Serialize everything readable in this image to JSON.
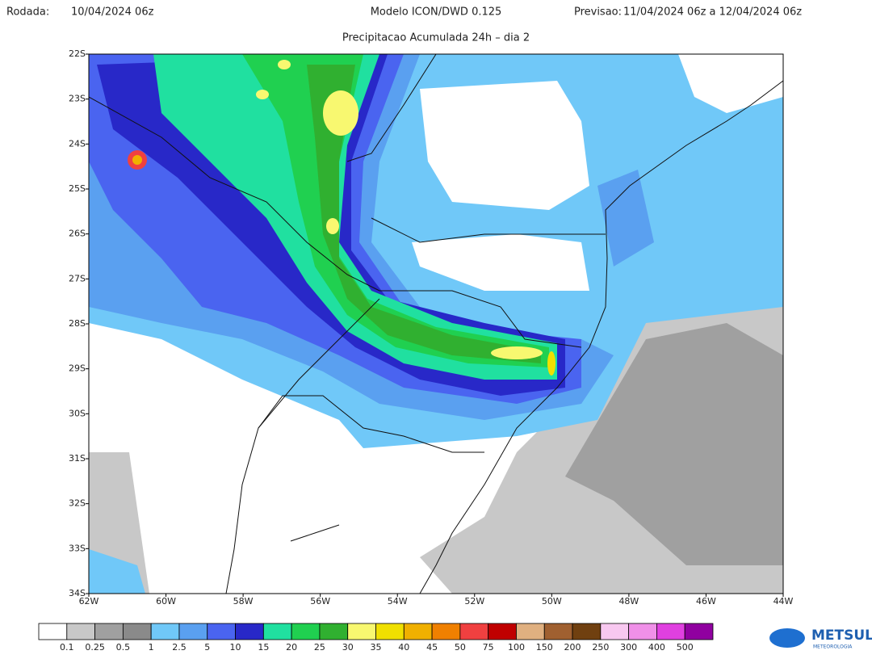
{
  "header": {
    "rodada_label": "Rodada:",
    "rodada": "10/04/2024 06z",
    "model": "Modelo ICON/DWD 0.125",
    "previsao_label": "Previsao:",
    "previsao": "11/04/2024 06z a 12/04/2024 06z"
  },
  "title": "Precipitacao Acumulada 24h – dia 2",
  "map": {
    "lat_labels": [
      "22S",
      "23S",
      "24S",
      "25S",
      "26S",
      "27S",
      "28S",
      "29S",
      "30S",
      "31S",
      "32S",
      "33S",
      "34S"
    ],
    "lon_labels": [
      "62W",
      "60W",
      "58W",
      "56W",
      "54W",
      "52W",
      "50W",
      "48W",
      "46W",
      "44W"
    ]
  },
  "colorbar": {
    "colors": [
      "#ffffff",
      "#c8c8c8",
      "#a0a0a0",
      "#8a8a8a",
      "#70c8f8",
      "#5aa0f0",
      "#4a64f0",
      "#2828c8",
      "#20e0a0",
      "#20d050",
      "#30b030",
      "#f8f870",
      "#f0e000",
      "#f0b000",
      "#f08000",
      "#f04040",
      "#c00000",
      "#e0b080",
      "#a06030",
      "#704010",
      "#f8c8f0",
      "#f090e8",
      "#e040e0",
      "#9000a0"
    ],
    "labels": [
      "0.1",
      "0.25",
      "0.5",
      "1",
      "2.5",
      "5",
      "10",
      "15",
      "20",
      "25",
      "30",
      "35",
      "40",
      "45",
      "50",
      "75",
      "100",
      "150",
      "200",
      "250",
      "300",
      "400",
      "500"
    ]
  },
  "logo": {
    "name": "METSUL",
    "subtitle": "METEOROLOGIA"
  }
}
